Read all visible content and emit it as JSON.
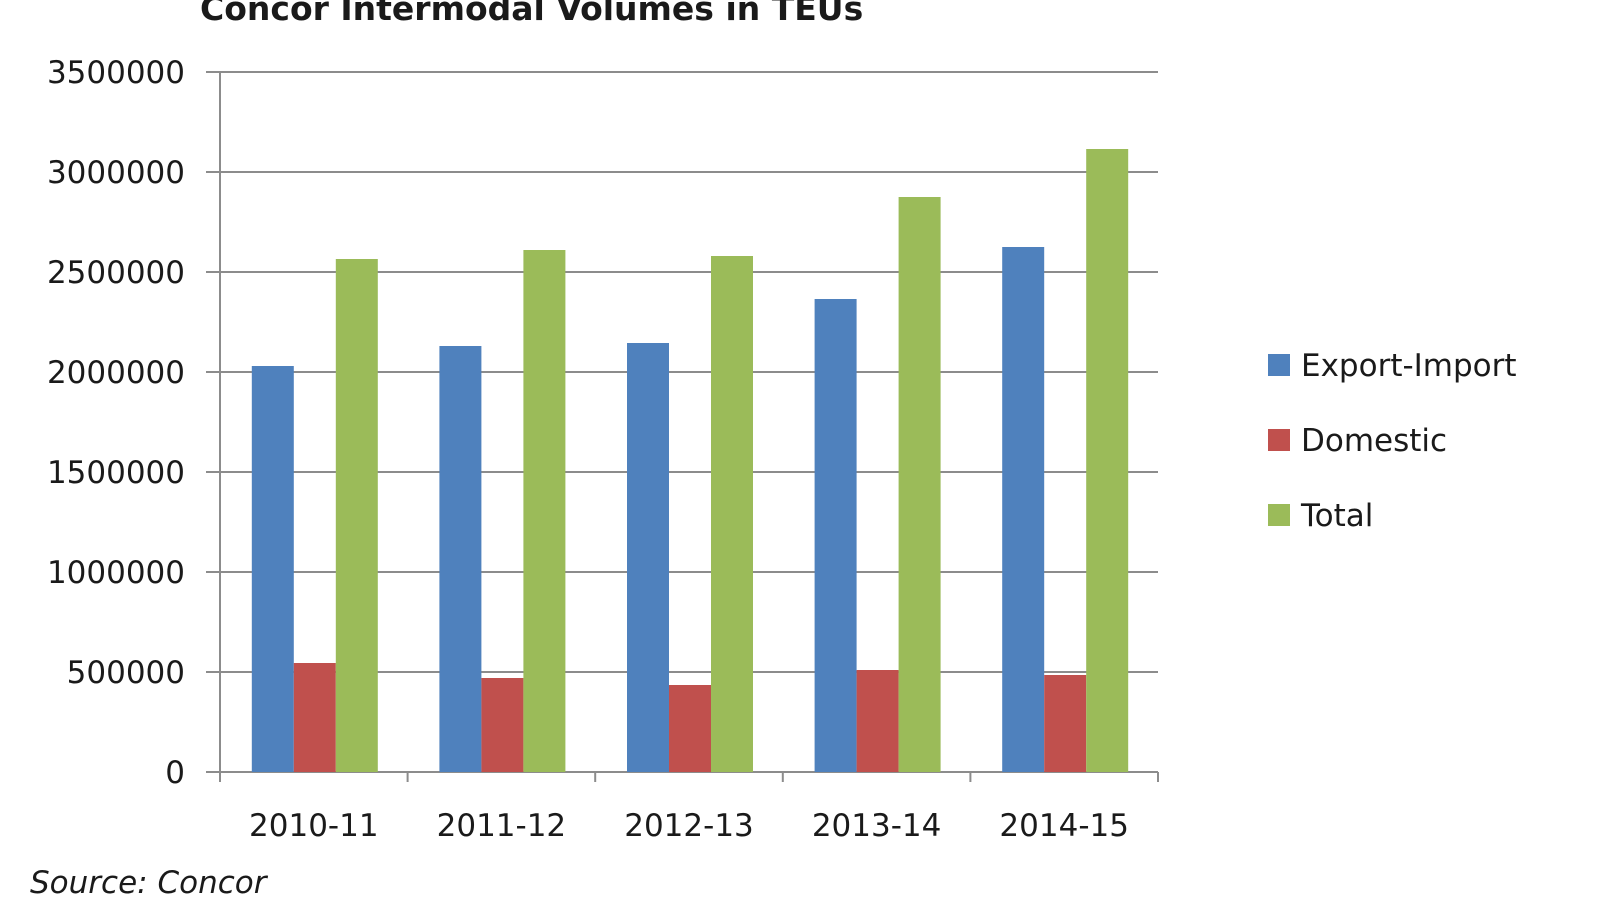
{
  "chart_data": {
    "type": "bar",
    "title": "Concor Intermodal Volumes in TEUs",
    "categories": [
      "2010-11",
      "2011-12",
      "2012-13",
      "2013-14",
      "2014-15"
    ],
    "series": [
      {
        "name": "Export-Import",
        "color": "#4f81bd",
        "values": [
          2030000,
          2130000,
          2145000,
          2365000,
          2625000
        ]
      },
      {
        "name": "Domestic",
        "color": "#c0504d",
        "values": [
          545000,
          470000,
          435000,
          510000,
          485000
        ]
      },
      {
        "name": "Total",
        "color": "#9bbb59",
        "values": [
          2565000,
          2610000,
          2580000,
          2875000,
          3115000
        ]
      }
    ],
    "yticks": [
      "0",
      "500000",
      "1000000",
      "1500000",
      "2000000",
      "2500000",
      "3000000",
      "3500000"
    ],
    "ylim": [
      0,
      3500000
    ],
    "grid": true,
    "legend_position": "right",
    "source": "Source: Concor"
  }
}
